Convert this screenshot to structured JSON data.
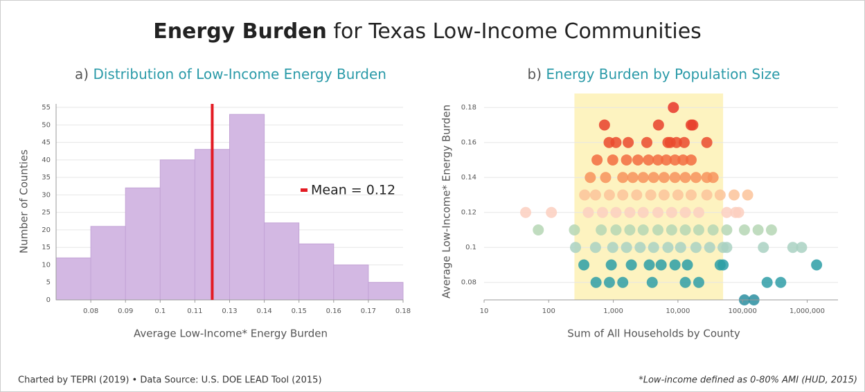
{
  "title_bold": "Energy Burden",
  "title_rest": "for Texas Low-Income Communities",
  "footer_left": "Charted by TEPRI (2019) • Data Source: U.S. DOE LEAD Tool (2015)",
  "footer_right": "*Low-income defined as 0-80% AMI (HUD, 2015)",
  "chart_data": [
    {
      "type": "histogram",
      "panel": "a)",
      "title": "Distribution of Low-Income Energy Burden",
      "x_label": "Average Low-Income* Energy Burden",
      "y_label": "Number of Counties",
      "bins": [
        0.07,
        0.08,
        0.09,
        0.1,
        0.11,
        0.13,
        0.14,
        0.15,
        0.16,
        0.17,
        0.18
      ],
      "values": [
        12,
        21,
        32,
        40,
        43,
        53,
        22,
        16,
        10,
        5
      ],
      "color": "#d3b8e3",
      "xlim": [
        0.07,
        0.18
      ],
      "ylim": [
        0,
        56
      ],
      "xticks": [
        0.08,
        0.09,
        0.1,
        0.11,
        0.13,
        0.14,
        0.15,
        0.16,
        0.17,
        0.18
      ],
      "yticks": [
        0,
        5,
        10,
        15,
        20,
        25,
        30,
        35,
        40,
        45,
        50,
        55
      ],
      "grid": true,
      "mean": 0.12,
      "mean_label": "Mean = 0.12",
      "mean_color": "#e31b23"
    },
    {
      "type": "scatter",
      "panel": "b)",
      "title": "Energy Burden by Population Size",
      "x_label": "Sum of All Households by County",
      "y_label": "Average Low-Income* Energy Burden",
      "xscale": "log",
      "xlim": [
        10,
        3000000
      ],
      "ylim": [
        0.07,
        0.188
      ],
      "xticks": [
        10,
        100,
        {
          "value": 1000,
          "label": "1,000"
        },
        {
          "value": 10000,
          "label": "10,000"
        },
        {
          "value": 100000,
          "label": "100,000"
        },
        {
          "value": 1000000,
          "label": "1,000,000"
        }
      ],
      "yticks": [
        0.08,
        0.1,
        0.12,
        0.14,
        0.16,
        0.18
      ],
      "grid": true,
      "highlight": [
        250,
        50000
      ],
      "highlight_color": "#fdf3c0",
      "series": [
        {
          "color": "#e8352a",
          "x": [
            8500
          ],
          "values": [
            0.18
          ]
        },
        {
          "color": "#e8402c",
          "x": [
            730,
            5000,
            16000,
            17000
          ],
          "values": [
            0.17,
            0.17,
            0.17,
            0.17
          ]
        },
        {
          "color": "#ea4a2e",
          "x": [
            860,
            1100,
            1700,
            3300,
            7000,
            7600,
            9500,
            12500,
            28000
          ],
          "values": [
            0.16,
            0.16,
            0.16,
            0.16,
            0.16,
            0.16,
            0.16,
            0.16,
            0.16
          ]
        },
        {
          "color": "#f26b3f",
          "x": [
            560,
            980,
            1600,
            2400,
            3500,
            4900,
            6600,
            9000,
            12000,
            16000
          ],
          "values": [
            0.15,
            0.15,
            0.15,
            0.15,
            0.15,
            0.15,
            0.15,
            0.15,
            0.15,
            0.15
          ]
        },
        {
          "color": "#f7925c",
          "x": [
            440,
            760,
            1400,
            2000,
            2900,
            4200,
            6100,
            9000,
            13000,
            19000,
            28000,
            35000
          ],
          "values": [
            0.14,
            0.14,
            0.14,
            0.14,
            0.14,
            0.14,
            0.14,
            0.14,
            0.14,
            0.14,
            0.14,
            0.14
          ]
        },
        {
          "color": "#fcc39a",
          "x": [
            360,
            530,
            870,
            1400,
            2300,
            3800,
            6100,
            10000,
            16000,
            28000,
            45000,
            74000,
            120000
          ],
          "values": [
            0.13,
            0.13,
            0.13,
            0.13,
            0.13,
            0.13,
            0.13,
            0.13,
            0.13,
            0.13,
            0.13,
            0.13,
            0.13
          ]
        },
        {
          "color": "#fbcfc0",
          "x": [
            44,
            110,
            410,
            680,
            1100,
            1800,
            2900,
            4900,
            8000,
            13000,
            21000,
            57000,
            78000,
            87000
          ],
          "values": [
            0.12,
            0.12,
            0.12,
            0.12,
            0.12,
            0.12,
            0.12,
            0.12,
            0.12,
            0.12,
            0.12,
            0.12,
            0.12,
            0.12
          ]
        },
        {
          "color": "#b5d6b4",
          "x": [
            69,
            250,
            650,
            1100,
            1800,
            2900,
            4900,
            8000,
            13000,
            21000,
            35000,
            57000,
            107000,
            174000,
            280000
          ],
          "values": [
            0.11,
            0.11,
            0.11,
            0.11,
            0.11,
            0.11,
            0.11,
            0.11,
            0.11,
            0.11,
            0.11,
            0.11,
            0.11,
            0.11,
            0.11
          ]
        },
        {
          "color": "#a9d1c2",
          "x": [
            260,
            530,
            980,
            1600,
            2600,
            4200,
            7000,
            11000,
            19000,
            31000,
            50000,
            57000,
            210000,
            600000,
            820000
          ],
          "values": [
            0.1,
            0.1,
            0.1,
            0.1,
            0.1,
            0.1,
            0.1,
            0.1,
            0.1,
            0.1,
            0.1,
            0.1,
            0.1,
            0.1,
            0.1
          ]
        },
        {
          "color": "#2b9ea6",
          "x": [
            350,
            930,
            1900,
            3600,
            5500,
            9000,
            14000,
            45000,
            50000,
            1400000
          ],
          "values": [
            0.09,
            0.09,
            0.09,
            0.09,
            0.09,
            0.09,
            0.09,
            0.09,
            0.09,
            0.09
          ]
        },
        {
          "color": "#2f9da7",
          "x": [
            540,
            870,
            1400,
            4000,
            13000,
            21000,
            240000,
            390000
          ],
          "values": [
            0.08,
            0.08,
            0.08,
            0.08,
            0.08,
            0.08,
            0.08,
            0.08
          ]
        },
        {
          "color": "#2a8ea0",
          "x": [
            107000,
            150000
          ],
          "values": [
            0.07,
            0.07
          ]
        }
      ]
    }
  ]
}
